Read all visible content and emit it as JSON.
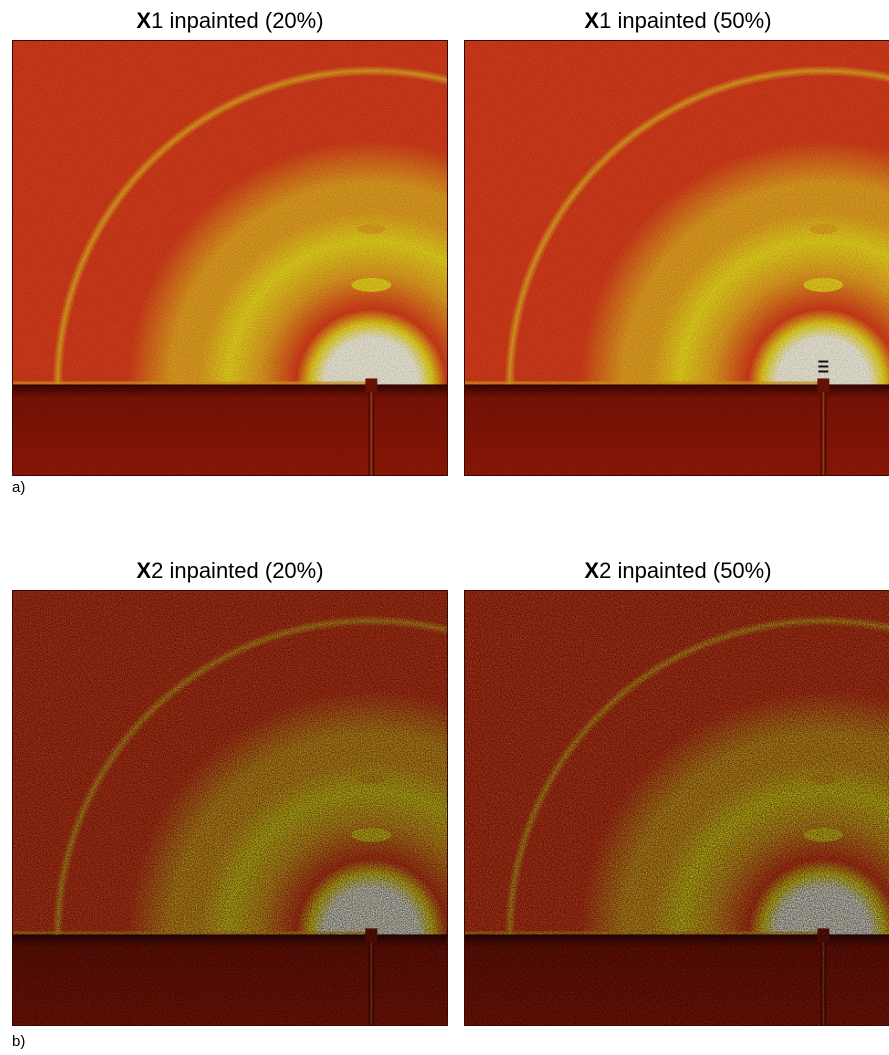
{
  "figure": {
    "row_a": {
      "label": "a)",
      "panels": [
        {
          "bold": "X",
          "title": "1 inpainted (20%)",
          "noise": 0.35,
          "artifact": false
        },
        {
          "bold": "X",
          "title": "1 inpainted (50%)",
          "noise": 0.35,
          "artifact": true
        }
      ]
    },
    "row_b": {
      "label": "b)",
      "panels": [
        {
          "bold": "X",
          "title": "2 inpainted (20%)",
          "noise": 0.9,
          "artifact": false
        },
        {
          "bold": "X",
          "title": "2 inpainted (50%)",
          "noise": 0.9,
          "artifact": false
        }
      ]
    },
    "colors": {
      "background": "#e8401c",
      "ring": "#f3aa22",
      "ring_bright": "#f7e21e",
      "center": "#fffbe8",
      "shadow": "#8a1506",
      "border": "#3a0a02"
    }
  }
}
